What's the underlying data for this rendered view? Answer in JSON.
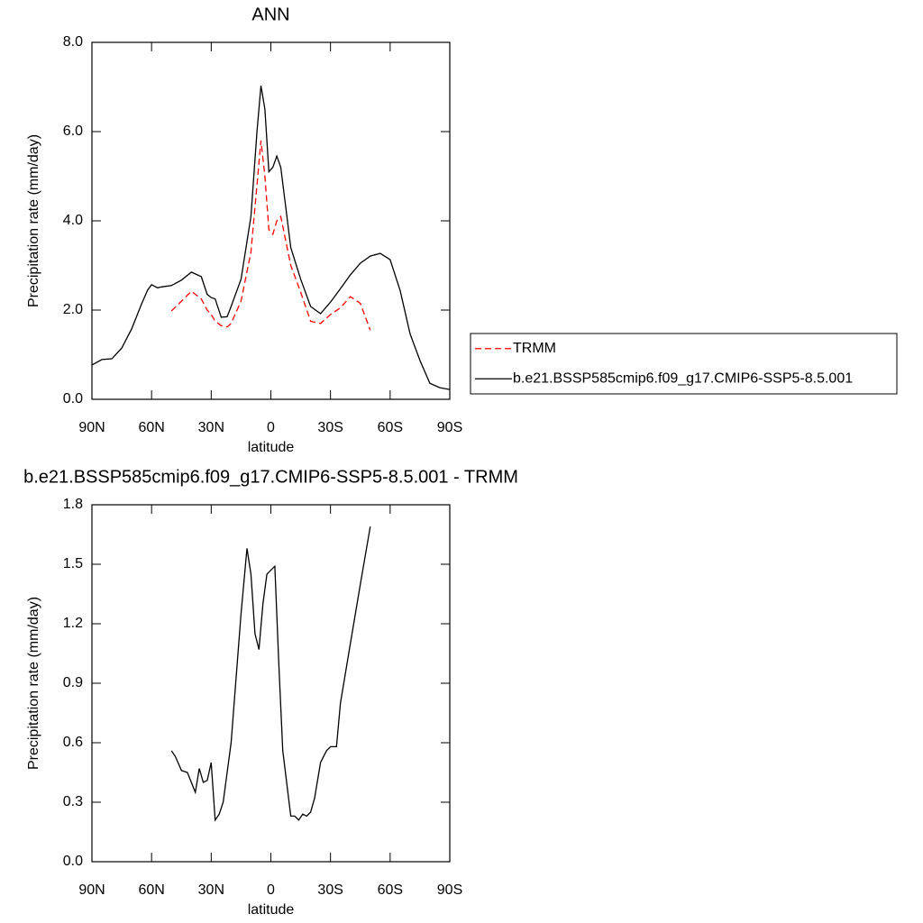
{
  "chart_data": [
    {
      "type": "line",
      "title": "ANN",
      "xlabel": "latitude",
      "ylabel": "Precipitation rate (mm/day)",
      "x": [
        90,
        85,
        80,
        75,
        70,
        65,
        62,
        60,
        57,
        55,
        50,
        45,
        40,
        35,
        32,
        30,
        28,
        25,
        22,
        20,
        15,
        10,
        7,
        5,
        3,
        1,
        -1,
        -3,
        -5,
        -10,
        -15,
        -20,
        -25,
        -30,
        -35,
        -40,
        -45,
        -50,
        -55,
        -60,
        -65,
        -70,
        -75,
        -80,
        -85,
        -90
      ],
      "series": [
        {
          "name": "TRMM",
          "color": "#ff0000",
          "dash": "dashed",
          "values": [
            null,
            null,
            null,
            null,
            null,
            null,
            null,
            null,
            null,
            null,
            1.98,
            2.2,
            2.42,
            2.25,
            2.0,
            1.9,
            1.75,
            1.65,
            1.62,
            1.7,
            2.2,
            3.3,
            4.8,
            5.8,
            5.0,
            3.8,
            3.7,
            4.0,
            4.1,
            3.0,
            2.4,
            1.75,
            1.7,
            1.9,
            2.05,
            2.3,
            2.15,
            1.55,
            null,
            null,
            null,
            null,
            null,
            null,
            null,
            null
          ]
        },
        {
          "name": "b.e21.BSSP585cmip6.f09_g17.CMIP6-SSP5-8.5.001",
          "color": "#000000",
          "dash": "solid",
          "values": [
            0.77,
            0.89,
            0.91,
            1.15,
            1.58,
            2.14,
            2.45,
            2.57,
            2.5,
            2.52,
            2.55,
            2.67,
            2.85,
            2.75,
            2.35,
            2.28,
            2.25,
            1.84,
            1.85,
            2.08,
            2.69,
            4.1,
            6.0,
            7.03,
            6.5,
            5.1,
            5.2,
            5.45,
            5.2,
            3.4,
            2.69,
            2.08,
            1.92,
            2.18,
            2.48,
            2.79,
            3.05,
            3.21,
            3.27,
            3.13,
            2.44,
            1.47,
            0.87,
            0.36,
            0.26,
            0.22
          ]
        }
      ],
      "xlim": [
        90,
        -90
      ],
      "xticks": [
        {
          "value": 90,
          "label": "90N"
        },
        {
          "value": 60,
          "label": "60N"
        },
        {
          "value": 30,
          "label": "30N"
        },
        0,
        {
          "value": -30,
          "label": "30S"
        },
        {
          "value": -60,
          "label": "60S"
        },
        {
          "value": -90,
          "label": "90S"
        }
      ],
      "ylim": [
        0,
        8
      ],
      "yticks": [
        {
          "value": 0,
          "label": "0.0"
        },
        {
          "value": 2,
          "label": "2.0"
        },
        {
          "value": 4,
          "label": "4.0"
        },
        {
          "value": 6,
          "label": "6.0"
        },
        {
          "value": 8,
          "label": "8.0"
        }
      ],
      "legend": "right"
    },
    {
      "type": "line",
      "title": "b.e21.BSSP585cmip6.f09_g17.CMIP6-SSP5-8.5.001 - TRMM",
      "xlabel": "latitude",
      "ylabel": "Precipitation rate (mm/day)",
      "x": [
        50,
        48,
        45,
        42,
        40,
        38,
        36,
        34,
        32,
        30,
        28,
        26,
        24,
        20,
        15,
        12,
        10,
        8,
        6,
        4,
        2,
        0,
        -2,
        -4,
        -6,
        -10,
        -12,
        -14,
        -16,
        -18,
        -20,
        -22,
        -25,
        -28,
        -30,
        -33,
        -35,
        -40,
        -45,
        -50
      ],
      "values": [
        0.56,
        0.53,
        0.46,
        0.45,
        0.4,
        0.35,
        0.47,
        0.4,
        0.41,
        0.5,
        0.21,
        0.24,
        0.3,
        0.6,
        1.25,
        1.58,
        1.45,
        1.15,
        1.07,
        1.3,
        1.45,
        1.47,
        1.49,
        1.0,
        0.56,
        0.23,
        0.23,
        0.21,
        0.24,
        0.23,
        0.25,
        0.32,
        0.5,
        0.56,
        0.58,
        0.58,
        0.8,
        1.1,
        1.4,
        1.69
      ],
      "color": "#000000",
      "xlim": [
        90,
        -90
      ],
      "xticks": [
        {
          "value": 90,
          "label": "90N"
        },
        {
          "value": 60,
          "label": "60N"
        },
        {
          "value": 30,
          "label": "30N"
        },
        0,
        {
          "value": -30,
          "label": "30S"
        },
        {
          "value": -60,
          "label": "60S"
        },
        {
          "value": -90,
          "label": "90S"
        }
      ],
      "ylim": [
        0,
        1.8
      ],
      "yticks": [
        {
          "value": 0,
          "label": "0.0"
        },
        0.3,
        0.6,
        0.9,
        1.2,
        1.5,
        1.8
      ]
    }
  ]
}
